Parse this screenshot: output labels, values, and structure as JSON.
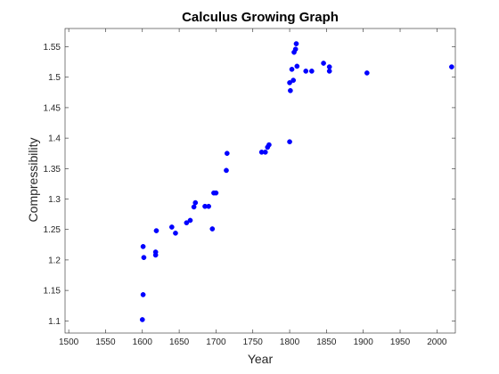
{
  "chart_data": {
    "type": "scatter",
    "title": "Calculus Growing Graph",
    "xlabel": "Year",
    "ylabel": "Compressibility",
    "xlim": [
      1495,
      2025
    ],
    "ylim": [
      1.08,
      1.58
    ],
    "xticks": [
      1500,
      1550,
      1600,
      1650,
      1700,
      1750,
      1800,
      1850,
      1900,
      1950,
      2000
    ],
    "yticks": [
      1.1,
      1.15,
      1.2,
      1.25,
      1.3,
      1.35,
      1.4,
      1.45,
      1.5,
      1.55
    ],
    "ytick_labels": [
      "1.1",
      "1.15",
      "1.2",
      "1.25",
      "1.3",
      "1.35",
      "1.4",
      "1.45",
      "1.5",
      "1.55"
    ],
    "grid": false,
    "marker_color": "#0000ff",
    "series": [
      {
        "points": [
          [
            1600,
            1.102
          ],
          [
            1601,
            1.143
          ],
          [
            1601,
            1.222
          ],
          [
            1602,
            1.204
          ],
          [
            1618,
            1.208
          ],
          [
            1618,
            1.213
          ],
          [
            1619,
            1.248
          ],
          [
            1640,
            1.254
          ],
          [
            1645,
            1.244
          ],
          [
            1660,
            1.261
          ],
          [
            1665,
            1.265
          ],
          [
            1670,
            1.287
          ],
          [
            1672,
            1.294
          ],
          [
            1685,
            1.288
          ],
          [
            1690,
            1.288
          ],
          [
            1695,
            1.251
          ],
          [
            1697,
            1.31
          ],
          [
            1700,
            1.31
          ],
          [
            1714,
            1.347
          ],
          [
            1715,
            1.375
          ],
          [
            1762,
            1.377
          ],
          [
            1767,
            1.377
          ],
          [
            1770,
            1.385
          ],
          [
            1772,
            1.389
          ],
          [
            1800,
            1.394
          ],
          [
            1800,
            1.491
          ],
          [
            1801,
            1.478
          ],
          [
            1803,
            1.513
          ],
          [
            1805,
            1.495
          ],
          [
            1806,
            1.541
          ],
          [
            1808,
            1.546
          ],
          [
            1809,
            1.555
          ],
          [
            1810,
            1.518
          ],
          [
            1822,
            1.51
          ],
          [
            1830,
            1.51
          ],
          [
            1846,
            1.523
          ],
          [
            1854,
            1.517
          ],
          [
            1854,
            1.51
          ],
          [
            1905,
            1.507
          ],
          [
            2020,
            1.517
          ]
        ]
      }
    ]
  }
}
